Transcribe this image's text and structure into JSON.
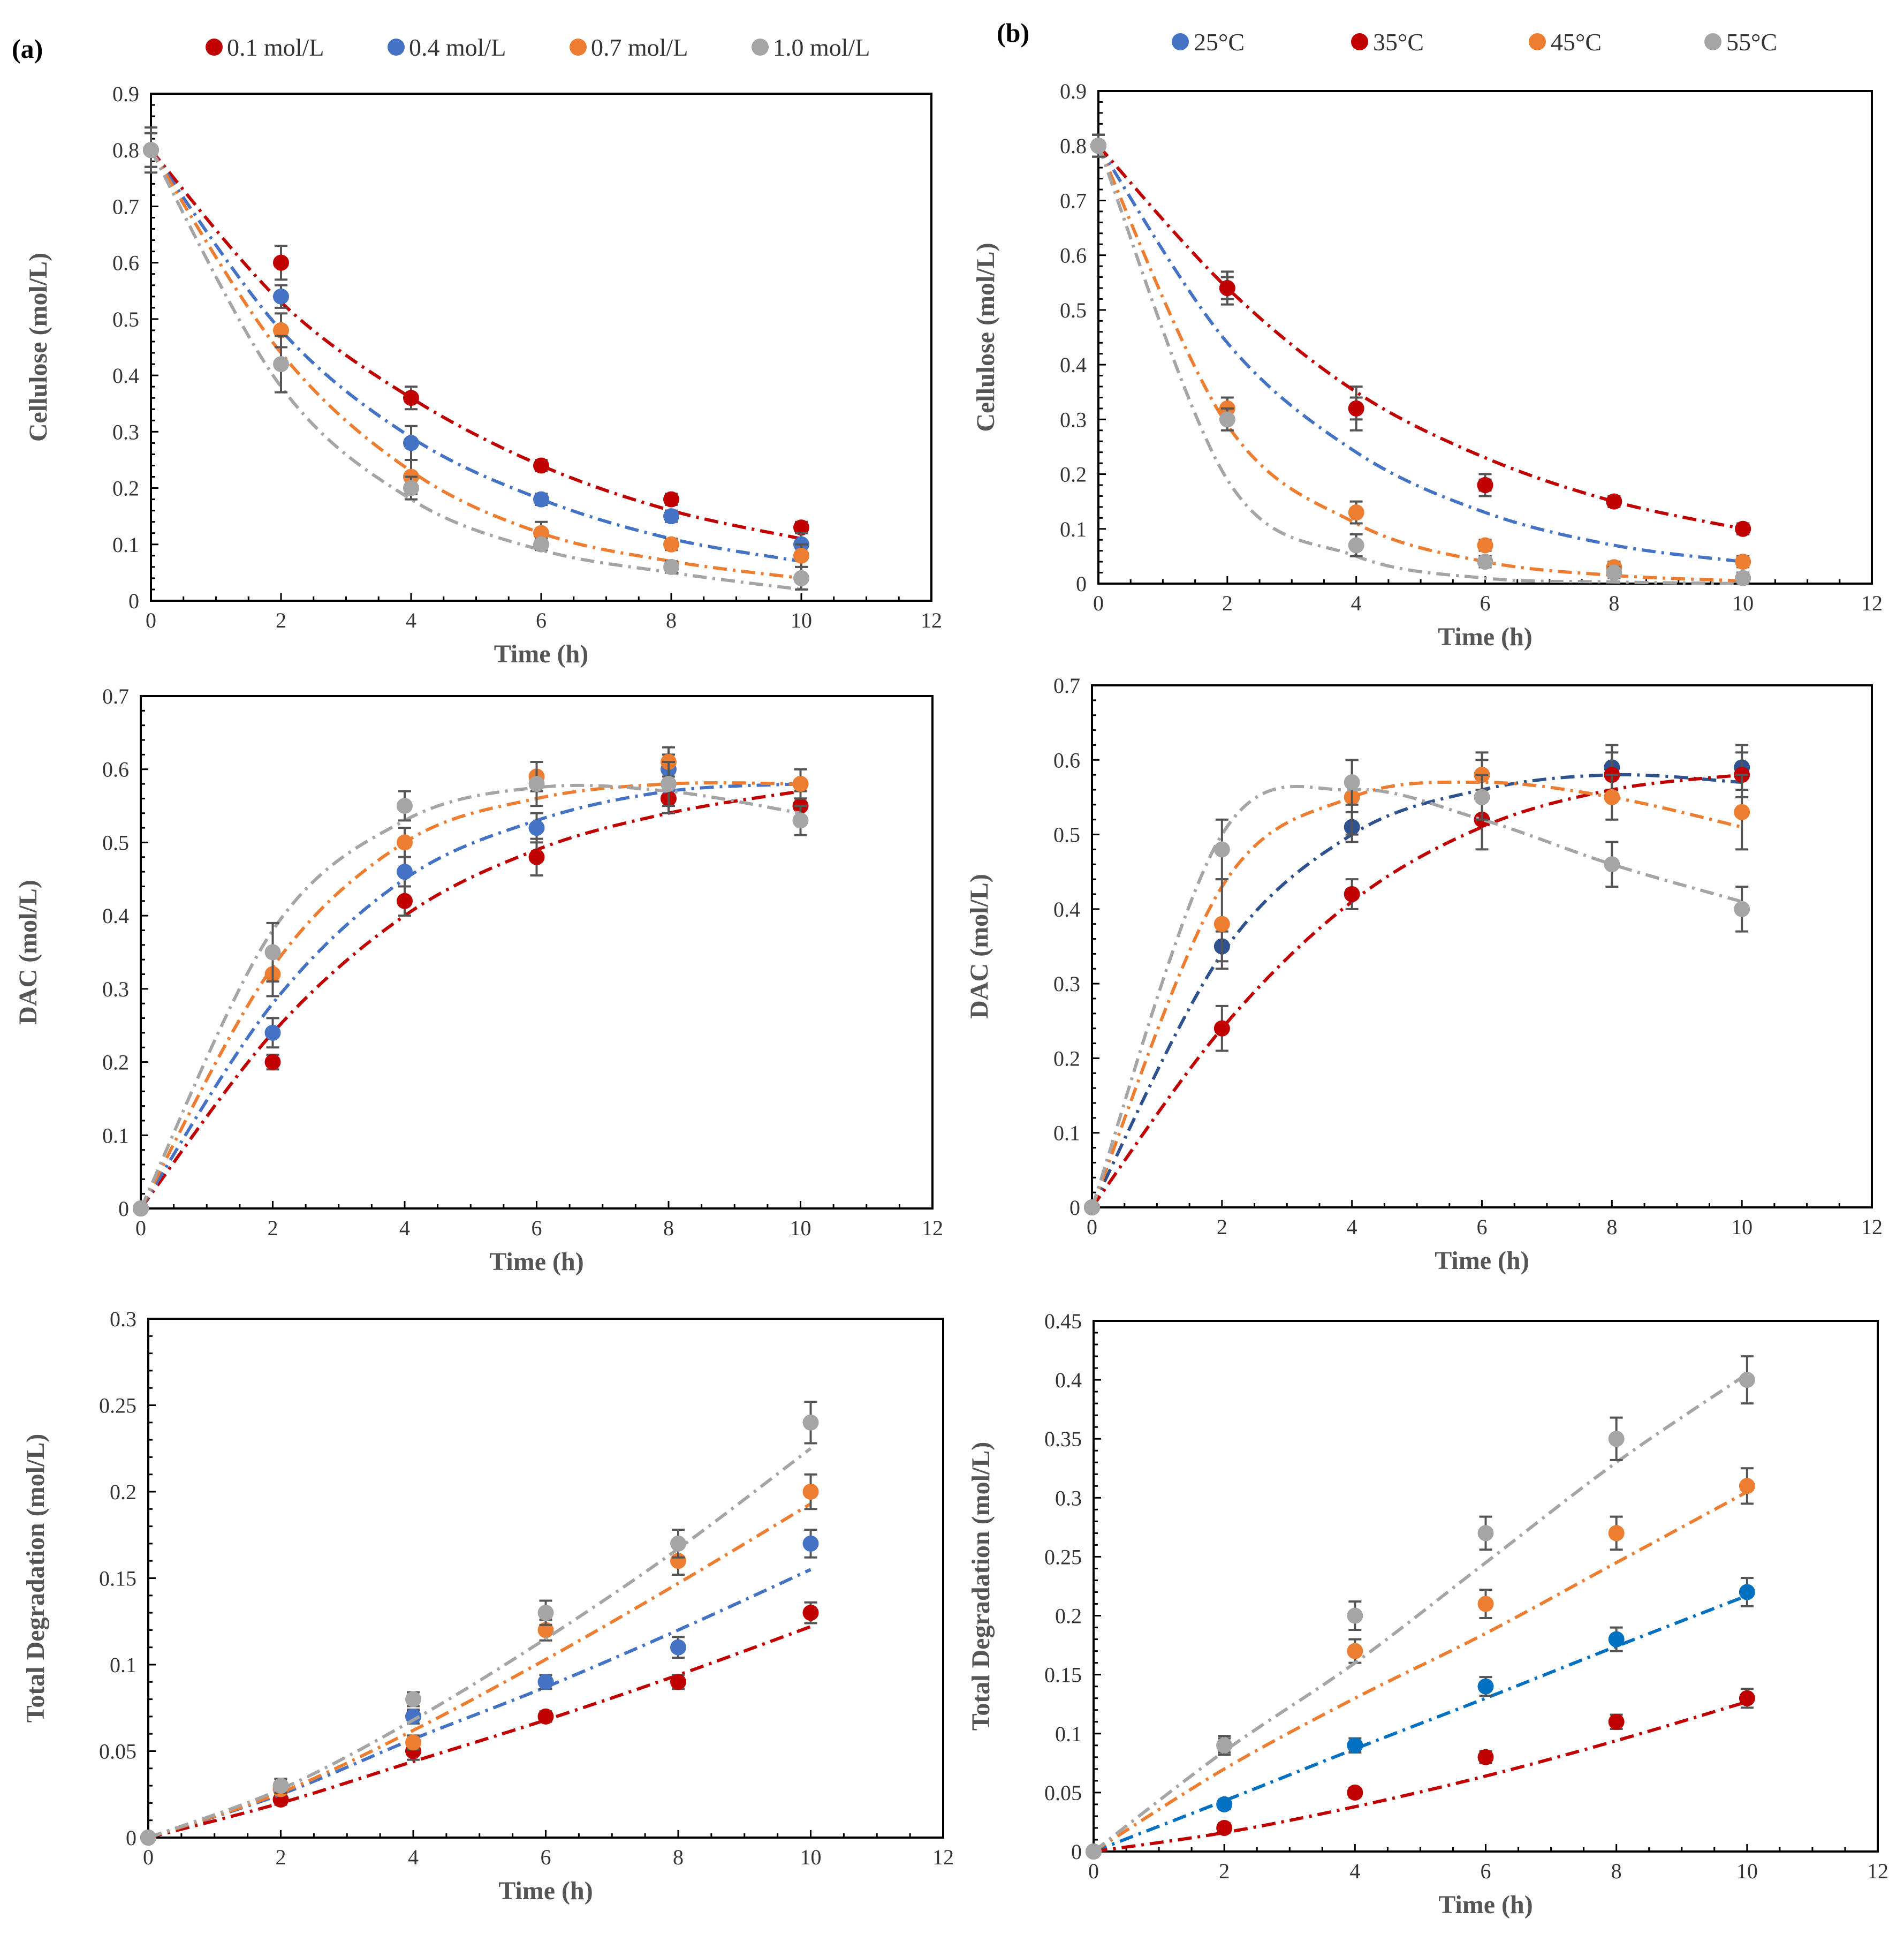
{
  "panels": {
    "a": {
      "label": "(a)"
    },
    "b": {
      "label": "(b)"
    }
  },
  "legends": {
    "a": [
      {
        "label": "0.1 mol/L",
        "color": "#c00000"
      },
      {
        "label": "0.4 mol/L",
        "color": "#4472c4"
      },
      {
        "label": "0.7 mol/L",
        "color": "#ed7d31"
      },
      {
        "label": "1.0 mol/L",
        "color": "#a5a5a5"
      }
    ],
    "b": [
      {
        "label": "25°C",
        "color": "#4472c4"
      },
      {
        "label": "35°C",
        "color": "#c00000"
      },
      {
        "label": "45°C",
        "color": "#ed7d31"
      },
      {
        "label": "55°C",
        "color": "#a5a5a5"
      }
    ]
  },
  "chart_data": [
    {
      "id": "a-cellulose",
      "panel": "a",
      "type": "scatter",
      "title": "",
      "xlabel": "Time (h)",
      "ylabel": "Cellulose (mol/L)",
      "xlim": [
        0,
        12
      ],
      "ylim": [
        0,
        0.9
      ],
      "xstep": 2,
      "ystep": 0.1,
      "x": [
        0,
        2,
        4,
        6,
        8,
        10
      ],
      "series": [
        {
          "name": "0.1 mol/L",
          "color": "#c00000",
          "values": [
            0.8,
            0.6,
            0.36,
            0.24,
            0.18,
            0.13
          ],
          "err": [
            0.03,
            0.03,
            0.02,
            0.01,
            0.01,
            0.01
          ],
          "fit": [
            0.8,
            0.53,
            0.36,
            0.24,
            0.16,
            0.11
          ]
        },
        {
          "name": "0.4 mol/L",
          "color": "#4472c4",
          "values": [
            0.8,
            0.54,
            0.28,
            0.18,
            0.15,
            0.1
          ],
          "err": [
            0.03,
            0.02,
            0.03,
            0.01,
            0.01,
            0.02
          ],
          "fit": [
            0.8,
            0.48,
            0.29,
            0.18,
            0.11,
            0.07
          ]
        },
        {
          "name": "0.7 mol/L",
          "color": "#ed7d31",
          "values": [
            0.8,
            0.48,
            0.22,
            0.12,
            0.1,
            0.08
          ],
          "err": [
            0.03,
            0.03,
            0.03,
            0.02,
            0.01,
            0.02
          ],
          "fit": [
            0.8,
            0.44,
            0.23,
            0.12,
            0.07,
            0.04
          ]
        },
        {
          "name": "1.0 mol/L",
          "color": "#a5a5a5",
          "values": [
            0.8,
            0.42,
            0.2,
            0.1,
            0.06,
            0.04
          ],
          "err": [
            0.04,
            0.05,
            0.02,
            0.01,
            0.01,
            0.02
          ],
          "fit": [
            0.8,
            0.38,
            0.18,
            0.09,
            0.05,
            0.02
          ]
        }
      ]
    },
    {
      "id": "b-cellulose",
      "panel": "b",
      "type": "scatter",
      "title": "",
      "xlabel": "Time (h)",
      "ylabel": "Cellulose (mol/L)",
      "xlim": [
        0,
        12
      ],
      "ylim": [
        0,
        0.9
      ],
      "xstep": 2,
      "ystep": 0.1,
      "x": [
        0,
        2,
        4,
        6,
        8,
        10
      ],
      "series": [
        {
          "name": "25°C",
          "color": "#4472c4",
          "values": [
            0.8,
            0.54,
            0.32,
            0.18,
            0.15,
            0.1
          ],
          "err": [
            0.02,
            0.03,
            0.04,
            0.02,
            0.01,
            0.01
          ],
          "fit": [
            0.8,
            0.44,
            0.24,
            0.13,
            0.07,
            0.04
          ]
        },
        {
          "name": "35°C",
          "color": "#c00000",
          "values": [
            0.8,
            0.54,
            0.32,
            0.18,
            0.15,
            0.1
          ],
          "err": [
            0.02,
            0.02,
            0.02,
            0.01,
            0.01,
            0.01
          ],
          "fit": [
            0.8,
            0.54,
            0.35,
            0.23,
            0.15,
            0.1
          ]
        },
        {
          "name": "45°C",
          "color": "#ed7d31",
          "values": [
            0.8,
            0.32,
            0.13,
            0.07,
            0.03,
            0.04
          ],
          "err": [
            0.02,
            0.02,
            0.02,
            0.01,
            0.01,
            0.01
          ],
          "fit": [
            0.8,
            0.29,
            0.11,
            0.04,
            0.015,
            0.005
          ]
        },
        {
          "name": "55°C",
          "color": "#a5a5a5",
          "values": [
            0.8,
            0.3,
            0.07,
            0.04,
            0.02,
            0.01
          ],
          "err": [
            0.02,
            0.02,
            0.02,
            0.01,
            0.01,
            0.01
          ],
          "fit": [
            0.8,
            0.19,
            0.05,
            0.01,
            0.003,
            0.0
          ]
        }
      ]
    },
    {
      "id": "a-dac",
      "panel": "a",
      "type": "scatter",
      "title": "",
      "xlabel": "Time (h)",
      "ylabel": "DAC (mol/L)",
      "xlim": [
        0,
        12
      ],
      "ylim": [
        0,
        0.7
      ],
      "xstep": 2,
      "ystep": 0.1,
      "x": [
        0,
        2,
        4,
        6,
        8,
        10
      ],
      "series": [
        {
          "name": "0.1 mol/L",
          "color": "#c00000",
          "values": [
            0,
            0.2,
            0.42,
            0.48,
            0.56,
            0.55
          ],
          "err": [
            0.005,
            0.01,
            0.02,
            0.025,
            0.02,
            0.02
          ],
          "fit": [
            0,
            0.24,
            0.4,
            0.49,
            0.54,
            0.57
          ]
        },
        {
          "name": "0.4 mol/L",
          "color": "#4472c4",
          "values": [
            0,
            0.24,
            0.46,
            0.52,
            0.6,
            0.58
          ],
          "err": [
            0.005,
            0.02,
            0.02,
            0.02,
            0.02,
            0.02
          ],
          "fit": [
            0,
            0.28,
            0.45,
            0.53,
            0.57,
            0.58
          ]
        },
        {
          "name": "0.7 mol/L",
          "color": "#ed7d31",
          "values": [
            0,
            0.32,
            0.5,
            0.59,
            0.61,
            0.58
          ],
          "err": [
            0.005,
            0.03,
            0.02,
            0.02,
            0.02,
            0.02
          ],
          "fit": [
            0,
            0.33,
            0.5,
            0.56,
            0.58,
            0.58
          ]
        },
        {
          "name": "1.0 mol/L",
          "color": "#a5a5a5",
          "values": [
            0,
            0.35,
            0.55,
            0.58,
            0.58,
            0.53
          ],
          "err": [
            0.005,
            0.04,
            0.02,
            0.03,
            0.03,
            0.02
          ],
          "fit": [
            0,
            0.38,
            0.53,
            0.575,
            0.57,
            0.54
          ]
        }
      ]
    },
    {
      "id": "b-dac",
      "panel": "b",
      "type": "scatter",
      "title": "",
      "xlabel": "Time (h)",
      "ylabel": "DAC (mol/L)",
      "xlim": [
        0,
        12
      ],
      "ylim": [
        0,
        0.7
      ],
      "xstep": 2,
      "ystep": 0.1,
      "x": [
        0,
        2,
        4,
        6,
        8,
        10
      ],
      "series": [
        {
          "name": "25°C",
          "color": "#2f528f",
          "values": [
            0,
            0.35,
            0.51,
            0.58,
            0.59,
            0.59
          ],
          "err": [
            0.005,
            0.02,
            0.02,
            0.03,
            0.03,
            0.03
          ],
          "fit": [
            0,
            0.34,
            0.5,
            0.56,
            0.58,
            0.57
          ]
        },
        {
          "name": "35°C",
          "color": "#c00000",
          "values": [
            0,
            0.24,
            0.42,
            0.52,
            0.58,
            0.58
          ],
          "err": [
            0.005,
            0.03,
            0.02,
            0.04,
            0.03,
            0.03
          ],
          "fit": [
            0,
            0.24,
            0.41,
            0.51,
            0.56,
            0.58
          ]
        },
        {
          "name": "45°C",
          "color": "#ed7d31",
          "values": [
            0,
            0.38,
            0.55,
            0.58,
            0.55,
            0.53
          ],
          "err": [
            0.005,
            0.06,
            0.05,
            0.02,
            0.03,
            0.05
          ],
          "fit": [
            0,
            0.43,
            0.55,
            0.57,
            0.55,
            0.51
          ]
        },
        {
          "name": "55°C",
          "color": "#a5a5a5",
          "values": [
            0,
            0.48,
            0.57,
            0.55,
            0.46,
            0.4
          ],
          "err": [
            0.005,
            0.04,
            0.03,
            0.03,
            0.03,
            0.03
          ],
          "fit": [
            0,
            0.5,
            0.56,
            0.52,
            0.46,
            0.41
          ]
        }
      ]
    },
    {
      "id": "a-degradation",
      "panel": "a",
      "type": "scatter",
      "title": "",
      "xlabel": "Time (h)",
      "ylabel": "Total Degradation (mol/L)",
      "xlim": [
        0,
        12
      ],
      "ylim": [
        0,
        0.3
      ],
      "xstep": 2,
      "ystep": 0.05,
      "x": [
        0,
        2,
        4,
        6,
        8,
        10
      ],
      "series": [
        {
          "name": "0.1 mol/L",
          "color": "#c00000",
          "values": [
            0,
            0.022,
            0.05,
            0.07,
            0.09,
            0.13
          ],
          "err": [
            0.002,
            0.003,
            0.005,
            0.003,
            0.004,
            0.006
          ],
          "fit": [
            0,
            0.02,
            0.044,
            0.068,
            0.094,
            0.122
          ]
        },
        {
          "name": "0.4 mol/L",
          "color": "#4472c4",
          "values": [
            0,
            0.028,
            0.07,
            0.09,
            0.11,
            0.17
          ],
          "err": [
            0.002,
            0.003,
            0.004,
            0.004,
            0.006,
            0.008
          ],
          "fit": [
            0,
            0.025,
            0.057,
            0.087,
            0.12,
            0.155
          ]
        },
        {
          "name": "0.7 mol/L",
          "color": "#ed7d31",
          "values": [
            0,
            0.028,
            0.055,
            0.12,
            0.16,
            0.2
          ],
          "err": [
            0.002,
            0.003,
            0.004,
            0.006,
            0.008,
            0.01
          ],
          "fit": [
            0,
            0.026,
            0.062,
            0.103,
            0.147,
            0.193
          ]
        },
        {
          "name": "1.0 mol/L",
          "color": "#a5a5a5",
          "values": [
            0,
            0.03,
            0.08,
            0.13,
            0.17,
            0.24
          ],
          "err": [
            0.002,
            0.004,
            0.004,
            0.007,
            0.008,
            0.012
          ],
          "fit": [
            0,
            0.028,
            0.068,
            0.115,
            0.167,
            0.225
          ]
        }
      ]
    },
    {
      "id": "b-degradation",
      "panel": "b",
      "type": "scatter",
      "title": "",
      "xlabel": "Time (h)",
      "ylabel": "Total Degradation (mol/L)",
      "xlim": [
        0,
        12
      ],
      "ylim": [
        0,
        0.45
      ],
      "xstep": 2,
      "ystep": 0.05,
      "x": [
        0,
        2,
        4,
        6,
        8,
        10
      ],
      "series": [
        {
          "name": "25°C",
          "color": "#0070c0",
          "values": [
            0,
            0.04,
            0.09,
            0.14,
            0.18,
            0.22
          ],
          "err": [
            0.003,
            0.004,
            0.006,
            0.008,
            0.01,
            0.012
          ],
          "fit": [
            0,
            0.043,
            0.087,
            0.13,
            0.174,
            0.217
          ]
        },
        {
          "name": "35°C",
          "color": "#c00000",
          "values": [
            0,
            0.02,
            0.05,
            0.08,
            0.11,
            0.13
          ],
          "err": [
            0.003,
            0.004,
            0.004,
            0.005,
            0.006,
            0.008
          ],
          "fit": [
            0,
            0.016,
            0.038,
            0.064,
            0.094,
            0.127
          ]
        },
        {
          "name": "45°C",
          "color": "#ed7d31",
          "values": [
            0,
            0.09,
            0.17,
            0.21,
            0.27,
            0.31
          ],
          "err": [
            0.003,
            0.006,
            0.01,
            0.012,
            0.014,
            0.015
          ],
          "fit": [
            0,
            0.07,
            0.13,
            0.185,
            0.245,
            0.305
          ]
        },
        {
          "name": "55°C",
          "color": "#a5a5a5",
          "values": [
            0,
            0.09,
            0.2,
            0.27,
            0.35,
            0.4
          ],
          "err": [
            0.003,
            0.008,
            0.012,
            0.014,
            0.018,
            0.02
          ],
          "fit": [
            0,
            0.085,
            0.16,
            0.245,
            0.33,
            0.405
          ]
        }
      ]
    }
  ]
}
